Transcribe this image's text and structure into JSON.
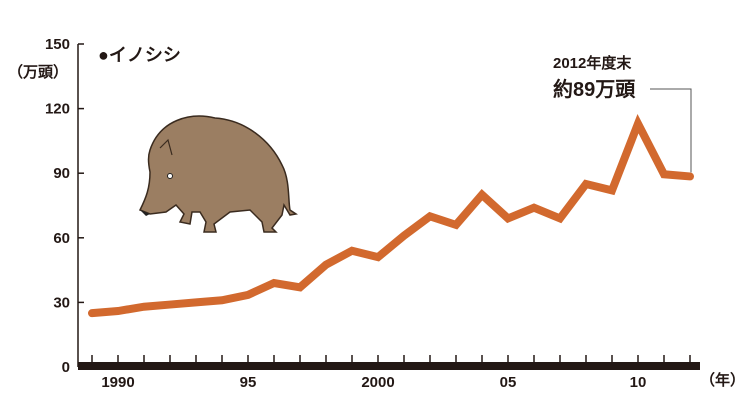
{
  "chart_data": {
    "type": "line",
    "legend": "●イノシシ",
    "ylabel": "（万頭）",
    "xlabel": "（年）",
    "ylim": [
      0,
      150
    ],
    "yticks": [
      0,
      30,
      60,
      90,
      120,
      150
    ],
    "xticks": [
      {
        "year": 1990,
        "label": "1990"
      },
      {
        "year": 1995,
        "label": "95"
      },
      {
        "year": 2000,
        "label": "2000"
      },
      {
        "year": 2005,
        "label": "05"
      },
      {
        "year": 2010,
        "label": "10"
      }
    ],
    "grid": false,
    "line_color": "#d2692e",
    "x": [
      1989,
      1990,
      1991,
      1992,
      1993,
      1994,
      1995,
      1996,
      1997,
      1998,
      1999,
      2000,
      2001,
      2002,
      2003,
      2004,
      2005,
      2006,
      2007,
      2008,
      2009,
      2010,
      2011,
      2012
    ],
    "values": [
      25,
      26,
      28,
      29,
      30,
      31,
      33.5,
      39,
      37,
      47.5,
      54,
      51,
      61,
      70,
      66,
      80,
      69,
      74,
      69,
      85,
      82,
      113,
      89.5,
      88.5
    ],
    "annotation": {
      "line1": "2012年度末",
      "line2": "約89万頭",
      "year": 2012
    }
  },
  "illustration": "wild-boar"
}
